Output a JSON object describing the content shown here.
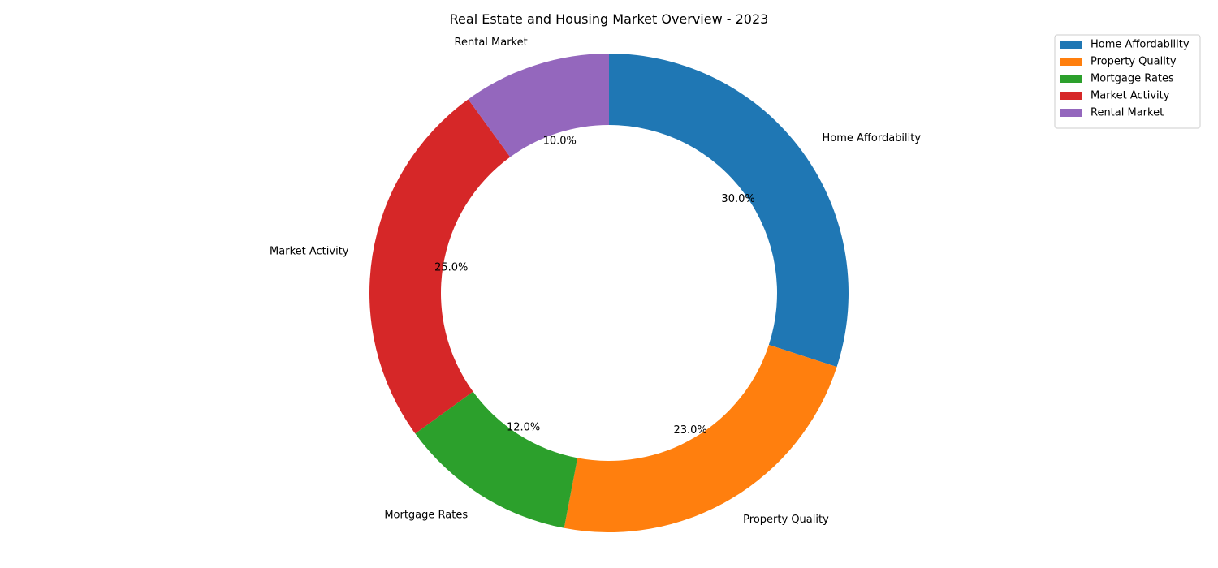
{
  "chart_data": {
    "type": "pie",
    "style": "donut",
    "title": "Real Estate and Housing Market Overview - 2023",
    "categories": [
      "Home Affordability",
      "Property Quality",
      "Mortgage Rates",
      "Market Activity",
      "Rental Market"
    ],
    "values": [
      30,
      23,
      12,
      25,
      10
    ],
    "value_labels": [
      "30.0%",
      "23.0%",
      "12.0%",
      "25.0%",
      "10.0%"
    ],
    "colors": [
      "#1f77b4",
      "#ff7f0e",
      "#2ca02c",
      "#d62728",
      "#9467bd"
    ],
    "start_angle_deg": 90,
    "direction": "clockwise",
    "legend": {
      "position": "top-right",
      "entries": [
        "Home Affordability",
        "Property Quality",
        "Mortgage Rates",
        "Market Activity",
        "Rental Market"
      ]
    }
  }
}
